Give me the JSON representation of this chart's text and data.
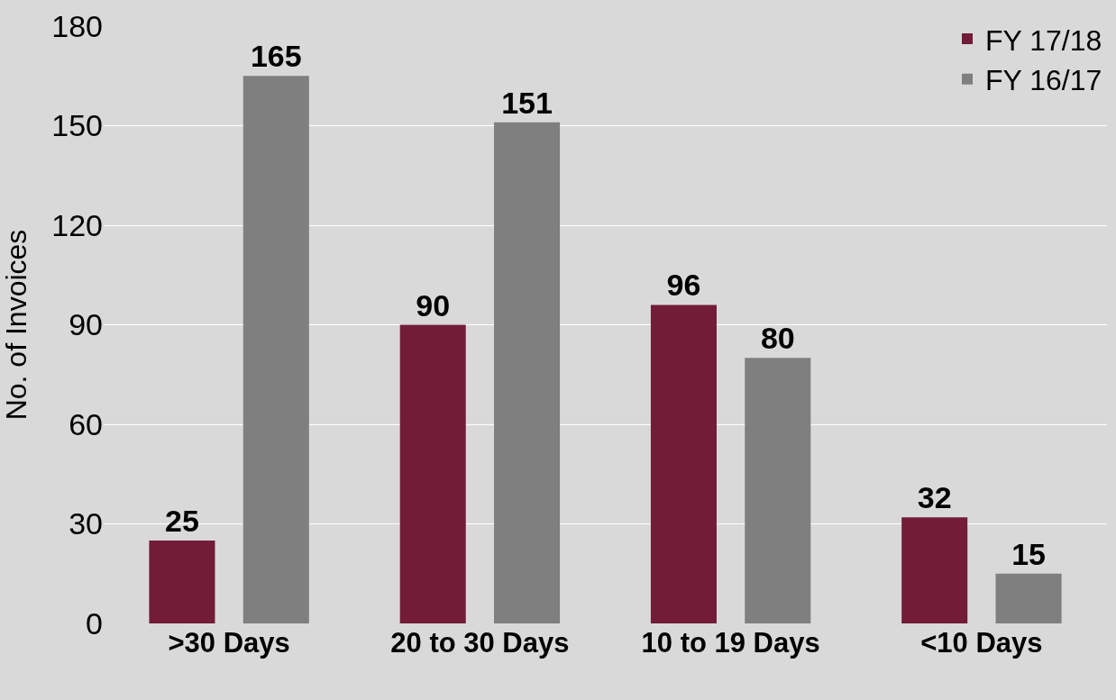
{
  "chart_data": {
    "type": "bar",
    "ylabel": "No. of Invoices",
    "categories": [
      ">30 Days",
      "20 to 30 Days",
      "10 to 19 Days",
      "<10 Days"
    ],
    "series": [
      {
        "name": "FY 17/18",
        "color": "#721c37",
        "values": [
          25,
          90,
          96,
          32
        ]
      },
      {
        "name": "FY 16/17",
        "color": "#7f7f7f",
        "values": [
          165,
          151,
          80,
          15
        ]
      }
    ],
    "ylim": [
      0,
      180
    ],
    "yticks": [
      0,
      30,
      60,
      90,
      120,
      150,
      180
    ],
    "grid": "y",
    "legend": "top right",
    "data_labels": true
  }
}
